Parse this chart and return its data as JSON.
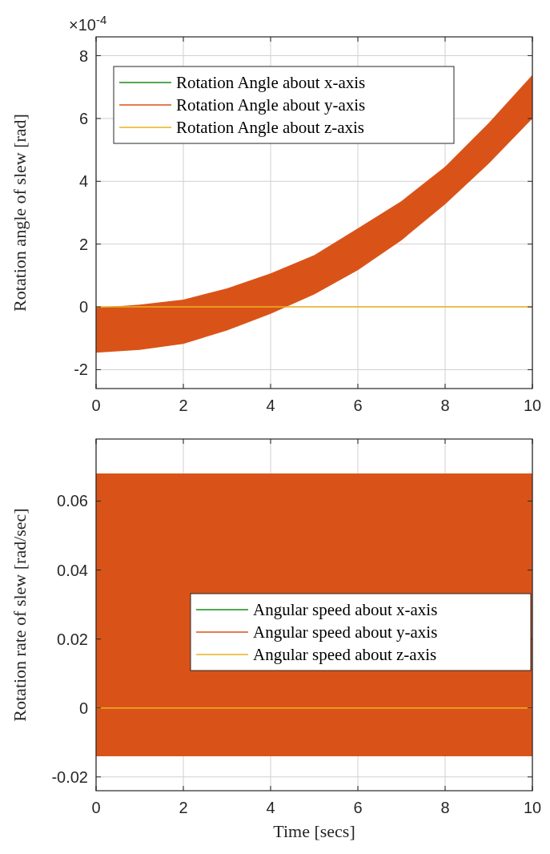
{
  "chart_data": [
    {
      "type": "line",
      "ylabel": "Rotation angle of slew [rad]",
      "annotations": [
        "×10$^{-4}$"
      ],
      "x": [
        0,
        1,
        2,
        3,
        4,
        5,
        6,
        7,
        8,
        9,
        10
      ],
      "xlim": [
        0,
        10
      ],
      "xticks": [
        0,
        2,
        4,
        6,
        8,
        10
      ],
      "ylim": [
        -2.6,
        8.6
      ],
      "yticks": [
        -2,
        0,
        2,
        4,
        6,
        8
      ],
      "grid": true,
      "legend": "top left",
      "line_style": "solid",
      "series": [
        {
          "name": "Rotation Angle about x-axis",
          "color": "#1a8a1a",
          "values": [
            null,
            null,
            null,
            null,
            null,
            null,
            null,
            null,
            null,
            null,
            null
          ]
        },
        {
          "name": "Rotation Angle about y-axis",
          "color": "#d95319",
          "values": [
            null,
            null,
            null,
            null,
            null,
            null,
            null,
            null,
            null,
            null,
            null
          ],
          "lower": [
            -1.46,
            -1.37,
            -1.18,
            -0.75,
            -0.22,
            0.4,
            1.17,
            2.12,
            3.27,
            4.56,
            6.0
          ],
          "upper": [
            -0.03,
            0.07,
            0.23,
            0.59,
            1.07,
            1.65,
            2.5,
            3.37,
            4.47,
            5.86,
            7.39
          ]
        },
        {
          "name": "Rotation Angle about z-axis",
          "color": "#edb120",
          "values": [
            0,
            0,
            0,
            0,
            0,
            0,
            0,
            0,
            0,
            0,
            0
          ]
        }
      ]
    },
    {
      "type": "line",
      "xlabel": "Time [secs]",
      "ylabel": "Rotation rate of slew [rad/sec]",
      "x": [
        0,
        10
      ],
      "xlim": [
        0,
        10
      ],
      "xticks": [
        0,
        2,
        4,
        6,
        8,
        10
      ],
      "ylim": [
        -0.024,
        0.078
      ],
      "yticks": [
        -0.02,
        0,
        0.02,
        0.04,
        0.06
      ],
      "grid": true,
      "legend": "right",
      "line_style": "solid",
      "series": [
        {
          "name": "Angular speed about x-axis",
          "color": "#1a8a1a",
          "values": [
            null,
            null
          ]
        },
        {
          "name": "Angular speed about y-axis",
          "color": "#d95319",
          "values": [
            null,
            null
          ],
          "lower": [
            -0.014,
            -0.014
          ],
          "upper": [
            0.068,
            0.068
          ]
        },
        {
          "name": "Angular speed about z-axis",
          "color": "#edb120",
          "values": [
            0,
            0
          ]
        }
      ]
    }
  ]
}
